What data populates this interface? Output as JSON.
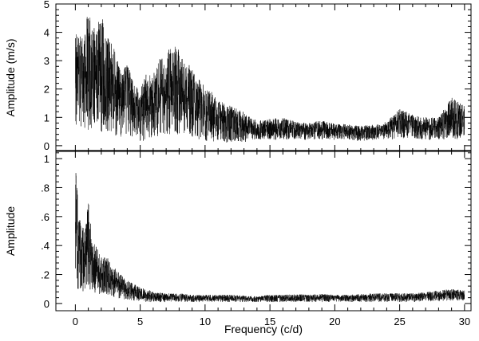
{
  "chart_data": [
    {
      "type": "line",
      "panel": "top",
      "xlabel": "",
      "ylabel": "Amplitude (m/s)",
      "xlim": [
        -1.5,
        30.5
      ],
      "ylim": [
        -0.2,
        5.0
      ],
      "xticks": [
        0,
        5,
        10,
        15,
        20,
        25,
        30
      ],
      "show_xtick_labels": false,
      "yticks": [
        0,
        1,
        2,
        3,
        4,
        5
      ],
      "ytick_labels": [
        "0",
        "1",
        "2",
        "3",
        "4",
        "5"
      ],
      "grid": false,
      "series": [
        {
          "x": [
            0,
            0.5,
            1,
            1.5,
            2,
            2.5,
            3,
            3.5,
            4,
            4.5,
            5,
            5.5,
            6,
            6.5,
            7,
            7.5,
            8,
            8.5,
            9,
            9.5,
            10,
            10.5,
            11,
            11.5,
            12,
            12.5,
            13,
            13.5,
            14,
            15,
            16,
            17,
            18,
            19,
            20,
            21,
            22,
            23,
            24,
            25,
            26,
            27,
            28,
            29,
            30
          ],
          "upper": [
            4.2,
            3.8,
            4.8,
            4.1,
            4.6,
            3.9,
            3.4,
            2.7,
            2.9,
            2.2,
            2.0,
            2.6,
            2.5,
            3.1,
            3.3,
            3.6,
            3.4,
            3.0,
            2.8,
            2.4,
            2.1,
            1.9,
            1.6,
            1.5,
            1.4,
            1.3,
            1.2,
            1.0,
            0.9,
            0.95,
            1.0,
            0.85,
            0.8,
            0.9,
            0.8,
            0.75,
            0.7,
            0.75,
            0.85,
            1.3,
            1.1,
            1.0,
            1.0,
            1.7,
            1.4
          ],
          "lower": [
            0.5,
            0.4,
            0.5,
            0.45,
            0.5,
            0.4,
            0.3,
            0.3,
            0.3,
            0.2,
            0.15,
            0.2,
            0.2,
            0.3,
            0.3,
            0.4,
            0.4,
            0.35,
            0.3,
            0.2,
            0.15,
            0.15,
            0.1,
            0.1,
            0.1,
            0.1,
            0.1,
            0.2,
            0.2,
            0.2,
            0.2,
            0.2,
            0.2,
            0.2,
            0.2,
            0.2,
            0.15,
            0.2,
            0.2,
            0.25,
            0.25,
            0.2,
            0.2,
            0.25,
            0.2
          ]
        }
      ]
    },
    {
      "type": "line",
      "panel": "bottom",
      "xlabel": "Frequency (c/d)",
      "ylabel": "Amplitude",
      "xlim": [
        -1.5,
        30.5
      ],
      "ylim": [
        -0.05,
        1.05
      ],
      "xticks": [
        0,
        5,
        10,
        15,
        20,
        25,
        30
      ],
      "xtick_labels": [
        "0",
        "5",
        "10",
        "15",
        "20",
        "25",
        "30"
      ],
      "yticks": [
        0,
        0.2,
        0.4,
        0.6,
        0.8,
        1
      ],
      "ytick_labels": [
        "0",
        ".2",
        ".4",
        ".6",
        ".8",
        "1"
      ],
      "grid": false,
      "series": [
        {
          "x": [
            0,
            0.3,
            0.7,
            1,
            1.3,
            1.7,
            2,
            2.5,
            3,
            3.5,
            4,
            4.5,
            5,
            5.5,
            6,
            7,
            8,
            9,
            10,
            11,
            12,
            13,
            14,
            15,
            16,
            17,
            18,
            19,
            20,
            21,
            22,
            23,
            24,
            25,
            26,
            27,
            28,
            29,
            30
          ],
          "upper": [
            0.97,
            0.6,
            0.5,
            0.72,
            0.45,
            0.38,
            0.33,
            0.32,
            0.25,
            0.2,
            0.16,
            0.14,
            0.11,
            0.1,
            0.08,
            0.07,
            0.07,
            0.06,
            0.06,
            0.06,
            0.06,
            0.055,
            0.05,
            0.06,
            0.06,
            0.065,
            0.06,
            0.065,
            0.06,
            0.06,
            0.065,
            0.07,
            0.07,
            0.07,
            0.07,
            0.08,
            0.09,
            0.1,
            0.09
          ],
          "lower": [
            0.1,
            0.08,
            0.08,
            0.1,
            0.08,
            0.07,
            0.06,
            0.05,
            0.04,
            0.03,
            0.02,
            0.02,
            0.015,
            0.01,
            0.01,
            0.01,
            0.01,
            0.01,
            0.01,
            0.01,
            0.01,
            0.01,
            0.01,
            0.01,
            0.01,
            0.01,
            0.01,
            0.01,
            0.01,
            0.01,
            0.01,
            0.01,
            0.01,
            0.01,
            0.01,
            0.015,
            0.015,
            0.02,
            0.02
          ]
        }
      ]
    }
  ]
}
